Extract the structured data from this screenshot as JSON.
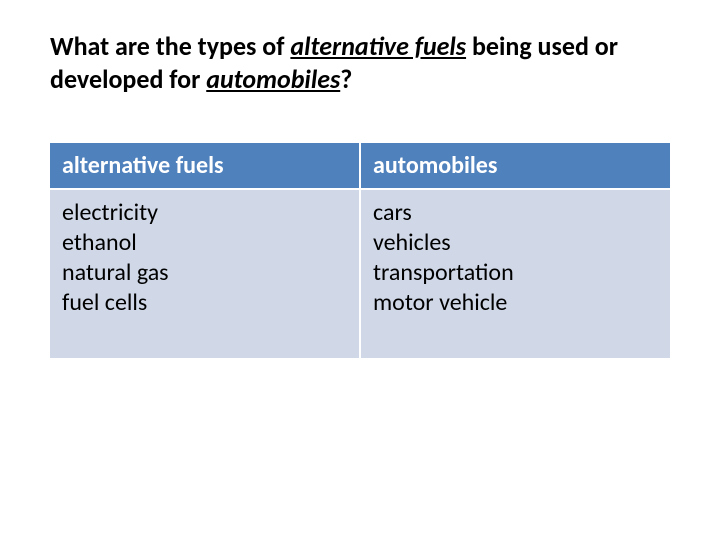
{
  "title": {
    "pre": "What are the types of ",
    "em1": "alternative fuels",
    "mid": " being used or developed for ",
    "em2": "automobiles",
    "post": "?"
  },
  "table": {
    "header_bg": "#4f81bd",
    "header_fg": "#ffffff",
    "body_bg": "#d0d8e8",
    "body_fg": "#000000",
    "border_color": "#ffffff",
    "columns": [
      {
        "header": "alternative fuels",
        "lines": [
          "electricity",
          "ethanol",
          "natural gas",
          "fuel cells"
        ]
      },
      {
        "header": "automobiles",
        "lines": [
          "cars",
          "vehicles",
          "transportation",
          "motor vehicle"
        ]
      }
    ],
    "header_fontsize": 24,
    "body_fontsize": 24
  }
}
